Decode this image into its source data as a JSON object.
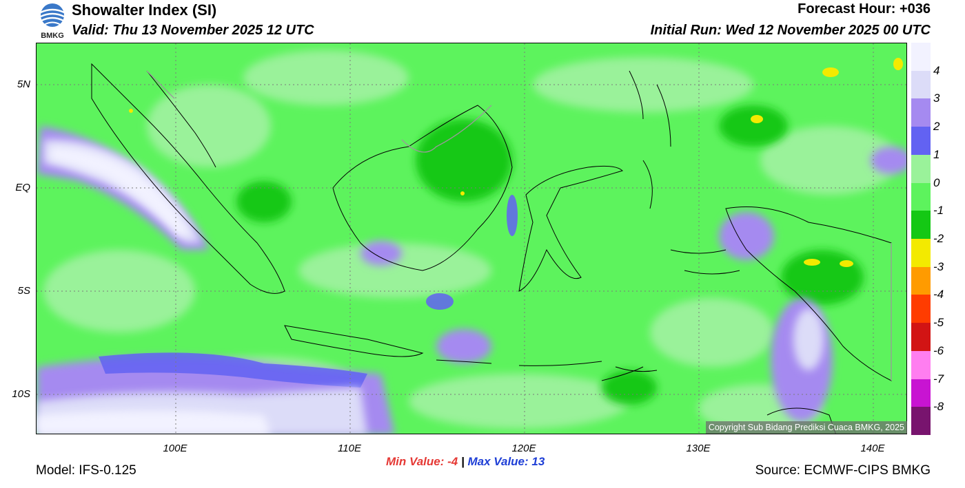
{
  "header": {
    "title": "Showalter Index (SI)",
    "valid": "Valid: Thu 13 November 2025 12 UTC",
    "forecast_hour": "Forecast Hour: +036",
    "initial_run": "Initial Run: Wed 12 November 2025 00 UTC",
    "logo_text": "BMKG"
  },
  "map": {
    "lat_labels": [
      "5N",
      "EQ",
      "5S",
      "10S"
    ],
    "lon_labels": [
      "100E",
      "110E",
      "120E",
      "130E",
      "140E"
    ],
    "copyright": "Copyright Sub Bidang Prediksi Cuaca BMKG, 2025"
  },
  "colorbar": {
    "labels": [
      "4",
      "3",
      "2",
      "1",
      "0",
      "-1",
      "-2",
      "-3",
      "-4",
      "-5",
      "-6",
      "-7",
      "-8"
    ],
    "colors": [
      "#f2f2ff",
      "#dcdcf8",
      "#a58af0",
      "#6262f2",
      "#9af29a",
      "#5df35d",
      "#14c814",
      "#f3ea00",
      "#ff9b00",
      "#ff3c00",
      "#d21414",
      "#ff7ef0",
      "#c814d2",
      "#78146e"
    ]
  },
  "footer": {
    "min_label": "Min Value:",
    "min_value": "-4",
    "separator": "|",
    "max_label": "Max Value:",
    "max_value": "13",
    "model": "Model: IFS-0.125",
    "source": "Source: ECMWF-CIPS BMKG"
  }
}
